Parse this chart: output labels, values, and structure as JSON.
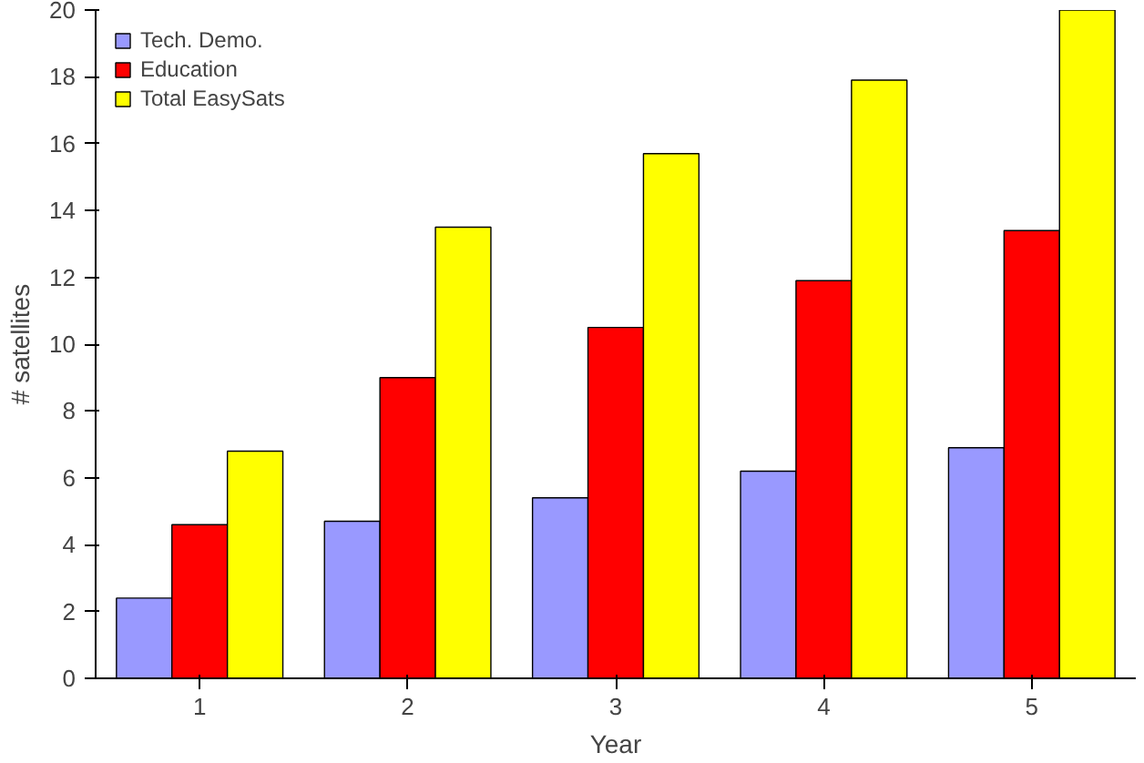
{
  "chart_data": {
    "type": "bar",
    "xlabel": "Year",
    "ylabel": "# satellites",
    "categories": [
      "1",
      "2",
      "3",
      "4",
      "5"
    ],
    "series": [
      {
        "name": "Tech. Demo.",
        "color": "#9999ff",
        "values": [
          2.4,
          4.7,
          5.4,
          6.2,
          6.9
        ]
      },
      {
        "name": "Education",
        "color": "#ff0000",
        "values": [
          4.6,
          9.0,
          10.5,
          11.9,
          13.4
        ]
      },
      {
        "name": "Total EasySats",
        "color": "#ffff00",
        "values": [
          6.8,
          13.5,
          15.7,
          17.9,
          20.0
        ]
      }
    ],
    "ylim": [
      0,
      20
    ],
    "yticks": [
      0,
      2,
      4,
      6,
      8,
      10,
      12,
      14,
      16,
      18,
      20
    ],
    "grid": false,
    "legend": "top left"
  }
}
